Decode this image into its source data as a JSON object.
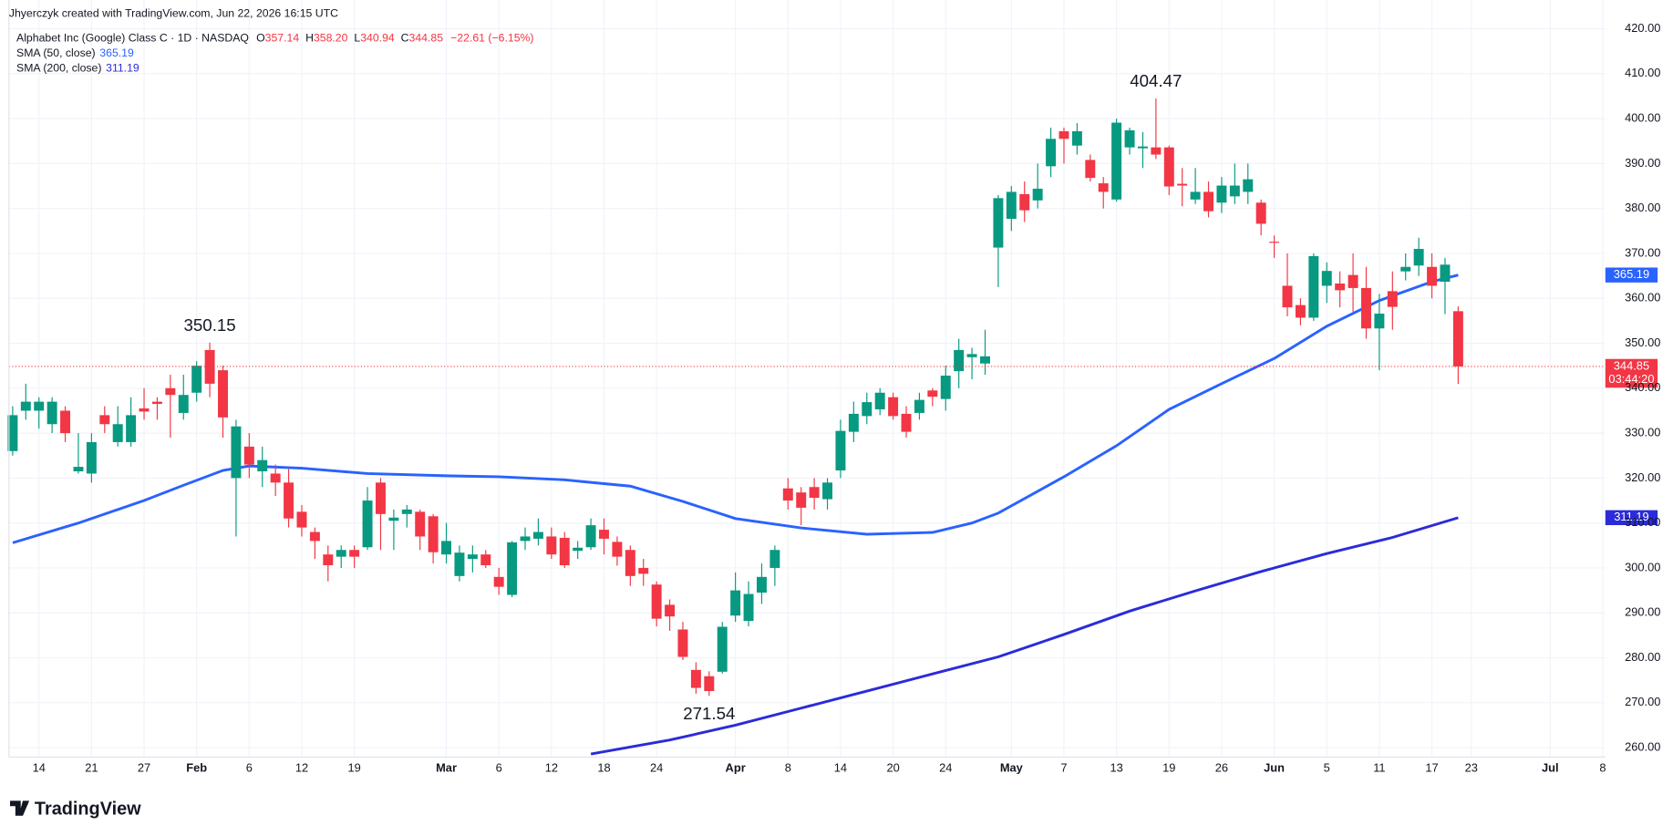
{
  "credit": "Jhyerczyk created with TradingView.com, Jun 22, 2026 16:15 UTC",
  "logo": "TradingView",
  "chart_data": {
    "type": "candlestick",
    "title": "Alphabet Inc (Google) Class C · 1D · NASDAQ",
    "ohlc": [
      {
        "label": "O",
        "value": "357.14"
      },
      {
        "label": "H",
        "value": "358.20"
      },
      {
        "label": "L",
        "value": "340.94"
      },
      {
        "label": "C",
        "value": "344.85"
      }
    ],
    "change": "−22.61 (−6.15%)",
    "countdown": "03:44:20",
    "up_color": "#089981",
    "down_color": "#f23645",
    "grid": true,
    "open": [
      326,
      335,
      335,
      332,
      335,
      321.5,
      321,
      334,
      328,
      328,
      335.5,
      337,
      340,
      334.5,
      339,
      348.5,
      344,
      320,
      327,
      321.5,
      321,
      319,
      312.5,
      308,
      303,
      302.5,
      304,
      304.6,
      319,
      310.5,
      312,
      312.5,
      311.5,
      303,
      298.2,
      302,
      303,
      298,
      294,
      306,
      306.5,
      307,
      306.7,
      303.8,
      304.6,
      308.5,
      305.8,
      304,
      300,
      296.3,
      291.8,
      286.3,
      277.3,
      275.9,
      276.9,
      289.4,
      288.2,
      294.5,
      300,
      317.7,
      316.8,
      318,
      315.3,
      321.7,
      330.3,
      333.8,
      335.3,
      338,
      334.3,
      334.5,
      339.5,
      337.6,
      343.8,
      346.9,
      345.5,
      371.3,
      377.7,
      383.2,
      381.8,
      389.4,
      397.2,
      394,
      390.8,
      385.6,
      382,
      393.6,
      393.4,
      393.6,
      393.6,
      385.5,
      382,
      383.7,
      381.3,
      382.7,
      383.7,
      381.3,
      372.6,
      362.8,
      358.5,
      355.7,
      362.8,
      363.3,
      365.2,
      362.3,
      353.3,
      361.6,
      366,
      367.3,
      367,
      363.7,
      357.14
    ],
    "high": [
      336,
      341,
      338,
      338,
      336,
      330,
      330,
      336,
      336,
      338,
      340,
      338,
      343,
      343,
      346,
      350.15,
      345,
      333,
      330,
      327,
      323,
      322,
      314,
      309,
      305,
      305,
      305,
      318,
      320,
      313,
      314,
      313,
      312,
      310,
      305,
      305,
      304,
      300,
      306,
      309,
      311,
      309,
      308,
      306,
      311,
      311,
      307,
      305,
      302,
      297,
      293,
      288,
      279,
      277,
      288,
      299,
      297,
      301,
      305,
      320,
      318,
      320,
      320,
      333,
      337,
      339,
      340,
      339,
      336,
      339,
      340,
      345,
      351,
      349,
      353,
      383,
      385,
      386,
      390,
      398,
      398,
      399,
      392,
      387,
      400,
      398,
      397,
      404.47,
      394,
      389,
      389,
      386,
      387,
      390,
      390,
      382,
      374,
      370,
      360,
      370,
      368,
      366,
      370,
      367,
      361,
      366,
      370,
      373.5,
      370,
      369,
      358.2
    ],
    "low": [
      325,
      333,
      331,
      330,
      328,
      321,
      319,
      330,
      327,
      327,
      333,
      333,
      329,
      333,
      337,
      338,
      329,
      307,
      320,
      318,
      316,
      309,
      307,
      302,
      297,
      300,
      300,
      304,
      304,
      304,
      309,
      304,
      301,
      301,
      297,
      299,
      300,
      294,
      293.5,
      304,
      305,
      302,
      300,
      302,
      304,
      303,
      300.5,
      296,
      296,
      287,
      286,
      279.5,
      272,
      271.54,
      276.5,
      288,
      287,
      292,
      296,
      313,
      309.5,
      313,
      313,
      320,
      328,
      332,
      334,
      333,
      329,
      333,
      336,
      335,
      340,
      342,
      343,
      362.5,
      375,
      377,
      380,
      387,
      390,
      392,
      386,
      380,
      381.5,
      392,
      389,
      391,
      383,
      380.5,
      381,
      378,
      379,
      381,
      381,
      374,
      369,
      356,
      354,
      355,
      359,
      358,
      357,
      351,
      344,
      353,
      364,
      365,
      360,
      356.5,
      340.94
    ],
    "close": [
      334,
      337,
      337,
      337,
      330,
      322.5,
      328,
      332,
      332,
      334,
      334.8,
      336.5,
      338.5,
      338.5,
      345,
      341,
      333.5,
      331.5,
      323,
      324,
      319,
      311,
      309,
      306,
      300.6,
      304,
      302.5,
      315,
      312,
      311.2,
      313,
      307,
      303.5,
      306,
      303.4,
      303,
      300.6,
      295.8,
      305.7,
      307,
      308,
      303,
      300.6,
      304.5,
      309.5,
      306.5,
      302.5,
      298.2,
      298.7,
      288.7,
      289.2,
      280.2,
      273.3,
      272.6,
      286.9,
      295,
      294.2,
      298,
      304,
      315,
      313.4,
      315.6,
      319,
      330.5,
      334.3,
      336.9,
      339,
      333.8,
      330.3,
      337.4,
      338.1,
      342.8,
      348.5,
      347.6,
      347.1,
      382.3,
      383.7,
      379.6,
      384.4,
      395.5,
      395.5,
      397.2,
      386.8,
      383.7,
      399.1,
      397.4,
      393.8,
      392,
      384.9,
      385.1,
      383.7,
      379.4,
      385.1,
      385.1,
      386.5,
      376.6,
      372.4,
      358,
      355.7,
      369.4,
      366.1,
      361.8,
      362.3,
      353.3,
      356.6,
      358.1,
      367,
      371,
      362.8,
      367.5,
      344.85
    ],
    "series": [
      {
        "name": "SMA (50, close)",
        "color": "#2962ff",
        "x": [
          0,
          5,
          10,
          13,
          16,
          18,
          22,
          27,
          33,
          37,
          42,
          47,
          51,
          55,
          60,
          65,
          70,
          73,
          75,
          80,
          84,
          88,
          92,
          96,
          100,
          104,
          108,
          110
        ],
        "values": [
          305.6,
          310,
          315,
          318.4,
          321.7,
          322.7,
          322.2,
          321,
          320.5,
          320.3,
          319.6,
          318.2,
          314.8,
          311,
          308.9,
          307.5,
          307.9,
          310,
          312.2,
          320.3,
          327.2,
          335.3,
          341,
          346.6,
          353.8,
          359.5,
          363.7,
          365.19
        ]
      },
      {
        "name": "SMA (200, close)",
        "color": "#2b2bd9",
        "x": [
          44,
          50,
          55,
          60,
          65,
          70,
          75,
          80,
          85,
          90,
          95,
          100,
          105,
          110
        ],
        "values": [
          258.6,
          261.7,
          265,
          268.8,
          272.6,
          276.4,
          280.2,
          285.2,
          290.4,
          294.9,
          299.2,
          303.2,
          306.8,
          311.19
        ]
      }
    ],
    "xlim": [
      -0.28,
      121.2
    ],
    "xticks": [
      {
        "value": 2,
        "label": "14"
      },
      {
        "value": 6,
        "label": "21"
      },
      {
        "value": 10,
        "label": "27"
      },
      {
        "value": 14,
        "label": "Feb"
      },
      {
        "value": 18,
        "label": "6"
      },
      {
        "value": 22,
        "label": "12"
      },
      {
        "value": 26,
        "label": "19"
      },
      {
        "value": 33,
        "label": "Mar"
      },
      {
        "value": 37,
        "label": "6"
      },
      {
        "value": 41,
        "label": "12"
      },
      {
        "value": 45,
        "label": "18"
      },
      {
        "value": 49,
        "label": "24"
      },
      {
        "value": 55,
        "label": "Apr"
      },
      {
        "value": 59,
        "label": "8"
      },
      {
        "value": 63,
        "label": "14"
      },
      {
        "value": 67,
        "label": "20"
      },
      {
        "value": 71,
        "label": "24"
      },
      {
        "value": 76,
        "label": "May"
      },
      {
        "value": 80,
        "label": "7"
      },
      {
        "value": 84,
        "label": "13"
      },
      {
        "value": 88,
        "label": "19"
      },
      {
        "value": 92,
        "label": "26"
      },
      {
        "value": 96,
        "label": "Jun"
      },
      {
        "value": 100,
        "label": "5"
      },
      {
        "value": 104,
        "label": "11"
      },
      {
        "value": 108,
        "label": "17"
      },
      {
        "value": 111,
        "label": "23"
      },
      {
        "value": 117,
        "label": "Jul"
      },
      {
        "value": 121,
        "label": "8"
      }
    ],
    "ylim": [
      257.9,
      426.4
    ],
    "yticks": [
      {
        "value": 260,
        "label": "260.00"
      },
      {
        "value": 270,
        "label": "270.00"
      },
      {
        "value": 280,
        "label": "280.00"
      },
      {
        "value": 290,
        "label": "290.00"
      },
      {
        "value": 300,
        "label": "300.00"
      },
      {
        "value": 310,
        "label": "310.00"
      },
      {
        "value": 320,
        "label": "320.00"
      },
      {
        "value": 330,
        "label": "330.00"
      },
      {
        "value": 340,
        "label": "340.00"
      },
      {
        "value": 350,
        "label": "350.00"
      },
      {
        "value": 360,
        "label": "360.00"
      },
      {
        "value": 370,
        "label": "370.00"
      },
      {
        "value": 380,
        "label": "380.00"
      },
      {
        "value": 390,
        "label": "390.00"
      },
      {
        "value": 400,
        "label": "400.00"
      },
      {
        "value": 410,
        "label": "410.00"
      },
      {
        "value": 420,
        "label": "420.00"
      }
    ]
  }
}
